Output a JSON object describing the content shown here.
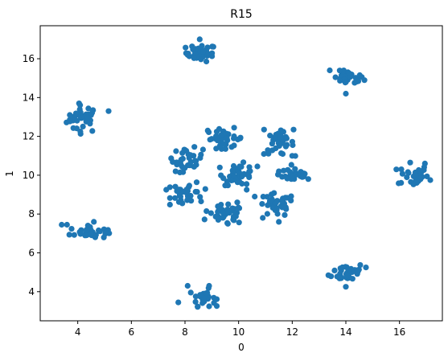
{
  "chart_data": {
    "type": "scatter",
    "title": "R15",
    "xlabel": "0",
    "ylabel": "1",
    "xlim": [
      2.6,
      17.6
    ],
    "ylim": [
      2.5,
      17.7
    ],
    "xticks": [
      4,
      6,
      8,
      10,
      12,
      14,
      16
    ],
    "yticks": [
      4,
      6,
      8,
      10,
      12,
      14,
      16
    ],
    "grid": false,
    "marker_color": "#1f77b4",
    "clusters": [
      {
        "center": [
          4.2,
          12.9
        ],
        "spread": [
          0.3,
          0.35
        ],
        "n": 34,
        "extra": [
          [
            5.15,
            13.3
          ],
          [
            4.05,
            13.7
          ],
          [
            3.7,
            12.85
          ]
        ]
      },
      {
        "center": [
          8.6,
          16.3
        ],
        "spread": [
          0.28,
          0.22
        ],
        "n": 34,
        "extra": [
          [
            8.55,
            17.0
          ],
          [
            8.1,
            16.2
          ]
        ]
      },
      {
        "center": [
          14.1,
          15.0
        ],
        "spread": [
          0.28,
          0.18
        ],
        "n": 36,
        "extra": [
          [
            13.4,
            15.4
          ],
          [
            14.0,
            14.2
          ]
        ]
      },
      {
        "center": [
          16.5,
          10.0
        ],
        "spread": [
          0.28,
          0.28
        ],
        "n": 32,
        "extra": [
          [
            17.15,
            9.75
          ],
          [
            16.95,
            10.6
          ],
          [
            16.4,
            10.65
          ]
        ]
      },
      {
        "center": [
          14.1,
          5.0
        ],
        "spread": [
          0.3,
          0.25
        ],
        "n": 34,
        "extra": [
          [
            14.75,
            5.25
          ],
          [
            14.0,
            4.25
          ],
          [
            13.35,
            4.85
          ]
        ]
      },
      {
        "center": [
          8.7,
          3.7
        ],
        "spread": [
          0.22,
          0.22
        ],
        "n": 30,
        "extra": [
          [
            7.75,
            3.45
          ],
          [
            8.1,
            4.3
          ],
          [
            8.9,
            4.3
          ]
        ]
      },
      {
        "center": [
          4.4,
          7.05
        ],
        "spread": [
          0.35,
          0.16
        ],
        "n": 36,
        "extra": [
          [
            3.4,
            7.45
          ],
          [
            3.6,
            7.45
          ],
          [
            5.05,
            7.05
          ],
          [
            4.6,
            7.6
          ]
        ]
      },
      {
        "center": [
          8.1,
          10.8
        ],
        "spread": [
          0.28,
          0.3
        ],
        "n": 32,
        "extra": [
          [
            7.65,
            10.2
          ],
          [
            8.0,
            11.3
          ]
        ]
      },
      {
        "center": [
          9.5,
          11.9
        ],
        "spread": [
          0.35,
          0.25
        ],
        "n": 36,
        "extra": [
          [
            8.85,
            12.3
          ],
          [
            9.3,
            11.5
          ]
        ]
      },
      {
        "center": [
          11.5,
          11.65
        ],
        "spread": [
          0.28,
          0.3
        ],
        "n": 34,
        "extra": [
          [
            10.95,
            12.35
          ],
          [
            12.05,
            12.35
          ],
          [
            12.0,
            11.0
          ]
        ]
      },
      {
        "center": [
          12.1,
          10.05
        ],
        "spread": [
          0.3,
          0.22
        ],
        "n": 34,
        "extra": [
          [
            12.6,
            9.8
          ],
          [
            11.5,
            10.2
          ]
        ]
      },
      {
        "center": [
          11.4,
          8.45
        ],
        "spread": [
          0.35,
          0.3
        ],
        "n": 36,
        "extra": [
          [
            10.6,
            8.9
          ],
          [
            11.5,
            7.6
          ],
          [
            10.9,
            7.8
          ]
        ]
      },
      {
        "center": [
          9.5,
          7.95
        ],
        "spread": [
          0.35,
          0.25
        ],
        "n": 34,
        "extra": [
          [
            8.8,
            8.15
          ],
          [
            9.6,
            7.5
          ],
          [
            9.95,
            8.6
          ]
        ]
      },
      {
        "center": [
          8.1,
          9.1
        ],
        "spread": [
          0.3,
          0.28
        ],
        "n": 34,
        "extra": [
          [
            7.3,
            9.25
          ],
          [
            7.9,
            8.55
          ],
          [
            8.6,
            8.65
          ]
        ]
      },
      {
        "center": [
          10.0,
          10.05
        ],
        "spread": [
          0.3,
          0.28
        ],
        "n": 38,
        "extra": [
          [
            10.3,
            9.25
          ],
          [
            9.3,
            10.4
          ],
          [
            10.7,
            10.45
          ]
        ]
      }
    ]
  }
}
